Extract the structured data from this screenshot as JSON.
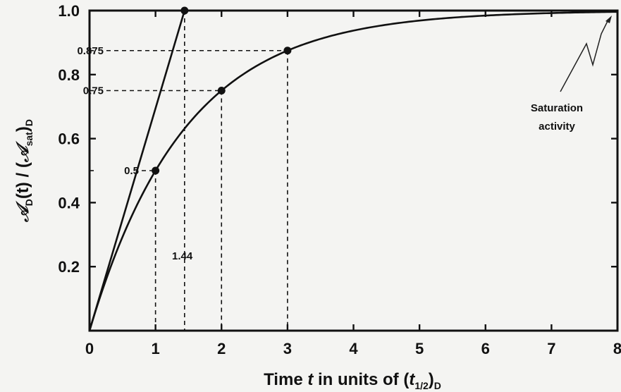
{
  "chart_data": {
    "type": "line",
    "xlabel": {
      "prefix": "Time ",
      "var": "t",
      "middle": " in units of ",
      "paren_open": "(",
      "sub_var": "t",
      "sub_var_sub": "1/2",
      "paren_close": ")",
      "outer_sub": "D"
    },
    "ylabel": {
      "num_symbol": "𝒜",
      "num_sub": "D",
      "num_arg": "(t)",
      "slash": " / (",
      "den_symbol": "𝒜",
      "den_sub": "sat",
      "den_close": ")",
      "den_outer_sub": "D"
    },
    "xlim": [
      0,
      8
    ],
    "ylim": [
      0,
      1.0
    ],
    "x_ticks": [
      "0",
      "1",
      "2",
      "3",
      "4",
      "5",
      "6",
      "7",
      "8"
    ],
    "y_ticks": [
      "0.2",
      "0.4",
      "0.6",
      "0.8",
      "1.0"
    ],
    "y_tick_values": [
      0.2,
      0.4,
      0.6,
      0.8,
      1.0
    ],
    "series": [
      {
        "curve": "1 - 2^(-x)",
        "x": [
          0,
          0.5,
          1,
          1.5,
          2,
          2.5,
          3,
          3.5,
          4,
          5,
          6,
          7,
          8
        ],
        "y": [
          0,
          0.293,
          0.5,
          0.646,
          0.75,
          0.823,
          0.875,
          0.912,
          0.938,
          0.969,
          0.984,
          0.992,
          0.996
        ]
      },
      {
        "curve": "tangent at origin",
        "x": [
          0,
          1.44
        ],
        "y": [
          0,
          1.0
        ]
      }
    ],
    "points": [
      {
        "x": 1,
        "y": 0.5
      },
      {
        "x": 2,
        "y": 0.75
      },
      {
        "x": 3,
        "y": 0.875
      },
      {
        "x": 1.44,
        "y": 1.0
      }
    ],
    "saturation_level": 1.0,
    "annotations": {
      "y_marks": [
        "0.5",
        "0.75",
        "0.875"
      ],
      "x_mark": "1.44",
      "saturation": [
        "Saturation",
        "activity"
      ]
    }
  },
  "colors": {
    "line": "#111111",
    "background": "#f4f4f2"
  }
}
